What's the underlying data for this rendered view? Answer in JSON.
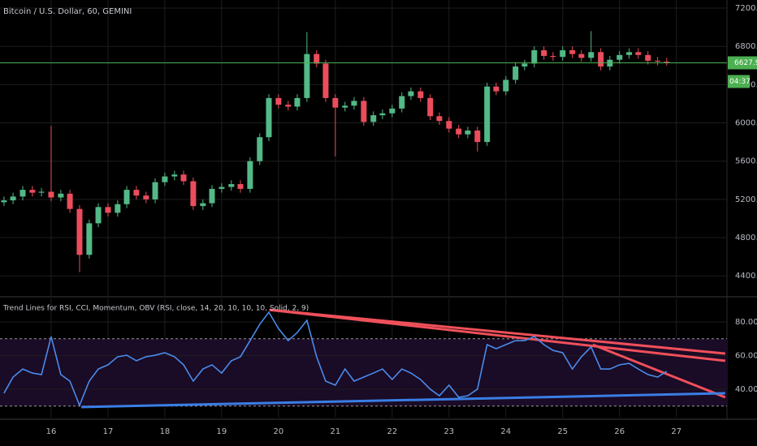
{
  "chart_data": [
    {
      "type": "candlestick",
      "title": "Bitcoin / U.S. Dollar, 60, GEMINI",
      "x": [
        15.17,
        15.33,
        15.5,
        15.67,
        15.83,
        16,
        16.17,
        16.33,
        16.5,
        16.67,
        16.83,
        17,
        17.17,
        17.33,
        17.5,
        17.67,
        17.83,
        18,
        18.17,
        18.33,
        18.5,
        18.67,
        18.83,
        19,
        19.17,
        19.33,
        19.5,
        19.67,
        19.83,
        20,
        20.17,
        20.33,
        20.5,
        20.67,
        20.83,
        21,
        21.17,
        21.33,
        21.5,
        21.67,
        21.83,
        22,
        22.17,
        22.33,
        22.5,
        22.67,
        22.83,
        23,
        23.17,
        23.33,
        23.5,
        23.67,
        23.83,
        24,
        24.17,
        24.33,
        24.5,
        24.67,
        24.83,
        25,
        25.17,
        25.33,
        25.5,
        25.67,
        25.83,
        26,
        26.17,
        26.33,
        26.5,
        26.67,
        26.83
      ],
      "open": [
        5170,
        5190,
        5230,
        5300,
        5270,
        5280,
        5220,
        5260,
        5100,
        4620,
        4950,
        5120,
        5060,
        5150,
        5300,
        5240,
        5200,
        5380,
        5440,
        5460,
        5390,
        5130,
        5160,
        5310,
        5330,
        5360,
        5310,
        5600,
        5850,
        6260,
        6190,
        6170,
        6260,
        6720,
        6620,
        6260,
        6160,
        6180,
        6230,
        6010,
        6080,
        6100,
        6150,
        6280,
        6330,
        6260,
        6070,
        6020,
        5940,
        5880,
        5920,
        5800,
        6380,
        6330,
        6450,
        6590,
        6620,
        6760,
        6700,
        6690,
        6760,
        6720,
        6680,
        6740,
        6590,
        6660,
        6710,
        6740,
        6710,
        6650,
        6640
      ],
      "high": [
        5230,
        5270,
        5340,
        5340,
        5320,
        5970,
        5300,
        5300,
        5140,
        4990,
        5160,
        5160,
        5190,
        5340,
        5340,
        5280,
        5420,
        5480,
        5500,
        5500,
        5430,
        5200,
        5350,
        5370,
        5400,
        5400,
        5640,
        5890,
        6300,
        6300,
        6230,
        6300,
        6950,
        6760,
        6660,
        6300,
        6220,
        6270,
        6270,
        6120,
        6140,
        6190,
        6320,
        6370,
        6370,
        6300,
        6110,
        6060,
        5980,
        5960,
        5960,
        6420,
        6420,
        6490,
        6630,
        6660,
        6800,
        6800,
        6740,
        6800,
        6800,
        6760,
        6960,
        6780,
        6700,
        6750,
        6780,
        6780,
        6750,
        6690,
        6680
      ],
      "low": [
        5130,
        5150,
        5190,
        5230,
        5230,
        5180,
        5180,
        5060,
        4440,
        4580,
        4910,
        5020,
        5020,
        5110,
        5200,
        5160,
        5160,
        5340,
        5400,
        5350,
        5090,
        5090,
        5120,
        5270,
        5290,
        5270,
        5270,
        5560,
        5810,
        6150,
        6130,
        6130,
        6220,
        6580,
        6220,
        5650,
        6120,
        6140,
        5970,
        5970,
        6040,
        6060,
        6110,
        6240,
        6220,
        6030,
        5980,
        5900,
        5840,
        5840,
        5700,
        5760,
        6290,
        6290,
        6410,
        6550,
        6580,
        6660,
        6650,
        6650,
        6680,
        6640,
        6640,
        6550,
        6550,
        6620,
        6670,
        6670,
        6610,
        6600,
        6600
      ],
      "close": [
        5190,
        5230,
        5300,
        5270,
        5280,
        5220,
        5260,
        5100,
        4620,
        4950,
        5120,
        5060,
        5150,
        5300,
        5240,
        5200,
        5380,
        5440,
        5460,
        5390,
        5130,
        5160,
        5310,
        5330,
        5360,
        5310,
        5600,
        5850,
        6260,
        6190,
        6170,
        6260,
        6720,
        6620,
        6260,
        6160,
        6180,
        6230,
        6010,
        6080,
        6100,
        6150,
        6280,
        6330,
        6260,
        6070,
        6020,
        5940,
        5880,
        5920,
        5800,
        6380,
        6330,
        6450,
        6590,
        6620,
        6760,
        6700,
        6690,
        6760,
        6720,
        6680,
        6740,
        6590,
        6660,
        6710,
        6740,
        6710,
        6650,
        6640,
        6628
      ],
      "up_color": "#53b987",
      "down_color": "#eb4d5c",
      "ylim": [
        4190,
        7285
      ],
      "yticks": [
        {
          "value": 4400,
          "label": "4400.00"
        },
        {
          "value": 4800,
          "label": "4800.00"
        },
        {
          "value": 5200,
          "label": "5200.00"
        },
        {
          "value": 5600,
          "label": "5600.00"
        },
        {
          "value": 6000,
          "label": "6000.00"
        },
        {
          "value": 6400,
          "label": "6400.00"
        },
        {
          "value": 6800,
          "label": "6800.00"
        },
        {
          "value": 7200,
          "label": "7200.00"
        }
      ],
      "last_price": 6627.98,
      "countdown": "04:37",
      "last_color": "#4caf50",
      "grid": true
    },
    {
      "type": "line",
      "title": "Trend Lines for RSI, CCI, Momentum, OBV (RSI, close, 14, 20, 10, 10, 10, Solid, 2, 9)",
      "x": [
        15.17,
        15.33,
        15.5,
        15.67,
        15.83,
        16,
        16.17,
        16.33,
        16.5,
        16.67,
        16.83,
        17,
        17.17,
        17.33,
        17.5,
        17.67,
        17.83,
        18,
        18.17,
        18.33,
        18.5,
        18.67,
        18.83,
        19,
        19.17,
        19.33,
        19.5,
        19.67,
        19.83,
        20,
        20.17,
        20.33,
        20.5,
        20.67,
        20.83,
        21,
        21.17,
        21.33,
        21.5,
        21.67,
        21.83,
        22,
        22.17,
        22.33,
        22.5,
        22.67,
        22.83,
        23,
        23.17,
        23.33,
        23.5,
        23.67,
        23.83,
        24,
        24.17,
        24.33,
        24.5,
        24.67,
        24.83,
        25,
        25.17,
        25.33,
        25.5,
        25.67,
        25.83,
        26,
        26.17,
        26.33,
        26.5,
        26.67,
        26.83
      ],
      "series": [
        {
          "name": "RSI",
          "color": "#4a8bea",
          "values": [
            37.6,
            47.2,
            52.0,
            49.6,
            48.7,
            71.3,
            48.7,
            44.8,
            30.4,
            44.8,
            52.0,
            54.5,
            59.3,
            60.2,
            56.9,
            59.3,
            60.2,
            61.7,
            59.3,
            54.5,
            44.8,
            52.0,
            54.5,
            49.6,
            56.9,
            59.3,
            68.9,
            78.6,
            85.8,
            76.1,
            68.9,
            73.7,
            81.0,
            59.3,
            44.8,
            42.4,
            52.0,
            44.8,
            47.2,
            49.6,
            52.0,
            45.8,
            52.0,
            49.6,
            45.8,
            40.0,
            36.1,
            42.4,
            35.2,
            36.1,
            40.0,
            66.5,
            64.1,
            66.5,
            68.9,
            68.9,
            71.3,
            66.5,
            63.1,
            61.7,
            52.0,
            59.3,
            65.1,
            52.0,
            52.0,
            54.5,
            55.4,
            52.0,
            48.7,
            47.2,
            50.6
          ]
        }
      ],
      "trend_lines": [
        {
          "color": "#f0505a",
          "x": [
            19.84,
            27.86
          ],
          "y": [
            87.2,
            61.2
          ]
        },
        {
          "color": "#f0505a",
          "x": [
            19.84,
            27.86
          ],
          "y": [
            87.2,
            56.9
          ]
        },
        {
          "color": "#f0505a",
          "x": [
            25.53,
            27.86
          ],
          "y": [
            66.5,
            35.2
          ]
        },
        {
          "color": "#3a7ee4",
          "x": [
            16.53,
            27.86
          ],
          "y": [
            29.4,
            37.6
          ]
        }
      ],
      "bands": [
        30,
        70
      ],
      "band_fill": "#1a0b26",
      "xlim": [
        15.1,
        27.89
      ],
      "xticks": [
        16,
        17,
        18,
        19,
        20,
        21,
        22,
        23,
        24,
        25,
        26,
        27
      ],
      "ylim": [
        23.1,
        94
      ],
      "yticks": [
        {
          "value": 40,
          "label": "40.00"
        },
        {
          "value": 60,
          "label": "60.00"
        },
        {
          "value": 80,
          "label": "80.00"
        }
      ],
      "grid": true
    }
  ]
}
